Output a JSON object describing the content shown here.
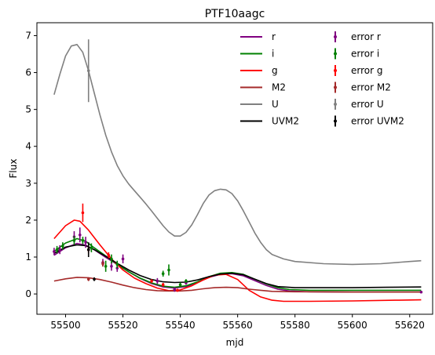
{
  "chart_data": {
    "type": "line",
    "title": "PTF10aagc",
    "xlabel": "mjd",
    "ylabel": "Flux",
    "xlim": [
      55490,
      55628
    ],
    "ylim": [
      -0.55,
      7.35
    ],
    "x_ticks": [
      55500,
      55520,
      55540,
      55560,
      55580,
      55600,
      55620
    ],
    "y_ticks": [
      0,
      1,
      2,
      3,
      4,
      5,
      6,
      7
    ],
    "grid": false,
    "legend": {
      "placement": "top-right",
      "columns": 2
    },
    "series": [
      {
        "name": "r",
        "color": "#800080",
        "curve": [
          [
            55496,
            1.05
          ],
          [
            55500,
            1.25
          ],
          [
            55504,
            1.37
          ],
          [
            55507,
            1.32
          ],
          [
            55510,
            1.2
          ],
          [
            55514,
            0.99
          ],
          [
            55518,
            0.8
          ],
          [
            55522,
            0.6
          ],
          [
            55526,
            0.42
          ],
          [
            55530,
            0.28
          ],
          [
            55534,
            0.19
          ],
          [
            55538,
            0.16
          ],
          [
            55542,
            0.2
          ],
          [
            55546,
            0.31
          ],
          [
            55550,
            0.45
          ],
          [
            55554,
            0.53
          ],
          [
            55558,
            0.55
          ],
          [
            55562,
            0.49
          ],
          [
            55566,
            0.36
          ],
          [
            55570,
            0.23
          ],
          [
            55574,
            0.13
          ],
          [
            55578,
            0.08
          ],
          [
            55585,
            0.06
          ],
          [
            55600,
            0.05
          ],
          [
            55615,
            0.05
          ],
          [
            55624,
            0.05
          ]
        ],
        "points": [
          [
            55496,
            1.15,
            0.1
          ],
          [
            55498,
            1.2,
            0.12
          ],
          [
            55503,
            1.55,
            0.15
          ],
          [
            55505,
            1.6,
            0.2
          ],
          [
            55507,
            1.4,
            0.15
          ],
          [
            55513,
            0.85,
            0.1
          ],
          [
            55516,
            0.75,
            0.12
          ],
          [
            55518,
            0.7,
            0.1
          ],
          [
            55520,
            0.95,
            0.12
          ],
          [
            55532,
            0.35,
            0.08
          ],
          [
            55538,
            0.12,
            0.06
          ],
          [
            55542,
            0.3,
            0.05
          ],
          [
            55624,
            0.05,
            0.03
          ]
        ]
      },
      {
        "name": "i",
        "color": "#008000",
        "curve": [
          [
            55496,
            1.15
          ],
          [
            55500,
            1.38
          ],
          [
            55504,
            1.5
          ],
          [
            55507,
            1.43
          ],
          [
            55510,
            1.25
          ],
          [
            55514,
            1.03
          ],
          [
            55518,
            0.8
          ],
          [
            55522,
            0.6
          ],
          [
            55526,
            0.43
          ],
          [
            55530,
            0.3
          ],
          [
            55534,
            0.21
          ],
          [
            55538,
            0.18
          ],
          [
            55542,
            0.22
          ],
          [
            55546,
            0.33
          ],
          [
            55550,
            0.47
          ],
          [
            55554,
            0.56
          ],
          [
            55558,
            0.58
          ],
          [
            55562,
            0.53
          ],
          [
            55566,
            0.4
          ],
          [
            55570,
            0.27
          ],
          [
            55574,
            0.17
          ],
          [
            55578,
            0.12
          ],
          [
            55585,
            0.1
          ],
          [
            55600,
            0.1
          ],
          [
            55615,
            0.1
          ],
          [
            55624,
            0.1
          ]
        ],
        "points": [
          [
            55497,
            1.2,
            0.1
          ],
          [
            55499,
            1.3,
            0.1
          ],
          [
            55503,
            1.45,
            0.12
          ],
          [
            55506,
            1.45,
            0.1
          ],
          [
            55509,
            1.25,
            0.12
          ],
          [
            55514,
            0.75,
            0.15
          ],
          [
            55516,
            0.95,
            0.12
          ],
          [
            55518,
            0.8,
            0.1
          ],
          [
            55534,
            0.55,
            0.08
          ],
          [
            55536,
            0.65,
            0.15
          ],
          [
            55540,
            0.25,
            0.06
          ],
          [
            55542,
            0.35,
            0.05
          ]
        ]
      },
      {
        "name": "g",
        "color": "#ff0000",
        "curve": [
          [
            55496,
            1.5
          ],
          [
            55500,
            1.85
          ],
          [
            55503,
            2.0
          ],
          [
            55505,
            1.97
          ],
          [
            55508,
            1.73
          ],
          [
            55512,
            1.33
          ],
          [
            55516,
            0.95
          ],
          [
            55520,
            0.65
          ],
          [
            55524,
            0.43
          ],
          [
            55528,
            0.28
          ],
          [
            55532,
            0.16
          ],
          [
            55536,
            0.09
          ],
          [
            55540,
            0.11
          ],
          [
            55544,
            0.22
          ],
          [
            55548,
            0.38
          ],
          [
            55552,
            0.51
          ],
          [
            55556,
            0.53
          ],
          [
            55560,
            0.39
          ],
          [
            55564,
            0.1
          ],
          [
            55568,
            -0.08
          ],
          [
            55572,
            -0.17
          ],
          [
            55576,
            -0.2
          ],
          [
            55585,
            -0.2
          ],
          [
            55600,
            -0.19
          ],
          [
            55615,
            -0.17
          ],
          [
            55624,
            -0.16
          ]
        ],
        "points": [
          [
            55506,
            2.2,
            0.25
          ],
          [
            55508,
            1.2,
            0.1
          ],
          [
            55515,
            1.05,
            0.08
          ],
          [
            55530,
            0.35,
            0.05
          ],
          [
            55534,
            0.25,
            0.05
          ],
          [
            55539,
            0.1,
            0.04
          ]
        ]
      },
      {
        "name": "M2",
        "color": "#a52a2a",
        "curve": [
          [
            55496,
            0.35
          ],
          [
            55500,
            0.41
          ],
          [
            55504,
            0.45
          ],
          [
            55508,
            0.44
          ],
          [
            55512,
            0.39
          ],
          [
            55516,
            0.32
          ],
          [
            55520,
            0.24
          ],
          [
            55524,
            0.17
          ],
          [
            55528,
            0.12
          ],
          [
            55532,
            0.09
          ],
          [
            55536,
            0.08
          ],
          [
            55540,
            0.08
          ],
          [
            55544,
            0.1
          ],
          [
            55548,
            0.14
          ],
          [
            55552,
            0.17
          ],
          [
            55556,
            0.18
          ],
          [
            55560,
            0.17
          ],
          [
            55564,
            0.13
          ],
          [
            55568,
            0.1
          ],
          [
            55572,
            0.07
          ],
          [
            55580,
            0.06
          ],
          [
            55600,
            0.05
          ],
          [
            55624,
            0.05
          ]
        ],
        "points": [
          [
            55508,
            0.4,
            0.05
          ],
          [
            55513,
            0.82,
            0.08
          ]
        ]
      },
      {
        "name": "U",
        "color": "#808080",
        "curve": [
          [
            55496,
            5.4
          ],
          [
            55498,
            5.95
          ],
          [
            55500,
            6.45
          ],
          [
            55502,
            6.72
          ],
          [
            55504,
            6.76
          ],
          [
            55506,
            6.55
          ],
          [
            55508,
            6.05
          ],
          [
            55510,
            5.45
          ],
          [
            55512,
            4.85
          ],
          [
            55514,
            4.3
          ],
          [
            55516,
            3.85
          ],
          [
            55518,
            3.48
          ],
          [
            55520,
            3.2
          ],
          [
            55522,
            2.98
          ],
          [
            55524,
            2.8
          ],
          [
            55526,
            2.62
          ],
          [
            55528,
            2.44
          ],
          [
            55530,
            2.25
          ],
          [
            55532,
            2.05
          ],
          [
            55534,
            1.85
          ],
          [
            55536,
            1.68
          ],
          [
            55538,
            1.57
          ],
          [
            55540,
            1.57
          ],
          [
            55542,
            1.67
          ],
          [
            55544,
            1.87
          ],
          [
            55546,
            2.15
          ],
          [
            55548,
            2.45
          ],
          [
            55550,
            2.68
          ],
          [
            55552,
            2.8
          ],
          [
            55554,
            2.84
          ],
          [
            55556,
            2.82
          ],
          [
            55558,
            2.72
          ],
          [
            55560,
            2.52
          ],
          [
            55562,
            2.25
          ],
          [
            55564,
            1.95
          ],
          [
            55566,
            1.65
          ],
          [
            55568,
            1.4
          ],
          [
            55570,
            1.2
          ],
          [
            55572,
            1.07
          ],
          [
            55576,
            0.95
          ],
          [
            55580,
            0.88
          ],
          [
            55590,
            0.82
          ],
          [
            55600,
            0.8
          ],
          [
            55610,
            0.82
          ],
          [
            55620,
            0.88
          ],
          [
            55624,
            0.9
          ]
        ],
        "points": [
          [
            55508,
            6.05,
            0.85
          ]
        ]
      },
      {
        "name": "UVM2",
        "color": "#000000",
        "curve": [
          [
            55496,
            1.1
          ],
          [
            55500,
            1.27
          ],
          [
            55504,
            1.33
          ],
          [
            55507,
            1.31
          ],
          [
            55510,
            1.2
          ],
          [
            55514,
            1.02
          ],
          [
            55518,
            0.83
          ],
          [
            55522,
            0.65
          ],
          [
            55526,
            0.5
          ],
          [
            55530,
            0.39
          ],
          [
            55534,
            0.33
          ],
          [
            55538,
            0.31
          ],
          [
            55542,
            0.32
          ],
          [
            55546,
            0.38
          ],
          [
            55550,
            0.47
          ],
          [
            55554,
            0.54
          ],
          [
            55558,
            0.56
          ],
          [
            55562,
            0.52
          ],
          [
            55566,
            0.4
          ],
          [
            55570,
            0.28
          ],
          [
            55574,
            0.2
          ],
          [
            55580,
            0.17
          ],
          [
            55590,
            0.17
          ],
          [
            55600,
            0.17
          ],
          [
            55612,
            0.18
          ],
          [
            55624,
            0.19
          ]
        ],
        "points": [
          [
            55508,
            1.2,
            0.2
          ],
          [
            55510,
            0.4,
            0.05
          ]
        ]
      }
    ],
    "legend_entries": [
      {
        "kind": "line",
        "label": "r",
        "color": "#800080"
      },
      {
        "kind": "line",
        "label": "i",
        "color": "#008000"
      },
      {
        "kind": "line",
        "label": "g",
        "color": "#ff0000"
      },
      {
        "kind": "line",
        "label": "M2",
        "color": "#a52a2a"
      },
      {
        "kind": "line",
        "label": "U",
        "color": "#808080"
      },
      {
        "kind": "line",
        "label": "UVM2",
        "color": "#000000"
      },
      {
        "kind": "error",
        "label": "error r",
        "color": "#800080"
      },
      {
        "kind": "error",
        "label": "error i",
        "color": "#008000"
      },
      {
        "kind": "error",
        "label": "error g",
        "color": "#ff0000"
      },
      {
        "kind": "error",
        "label": "error M2",
        "color": "#a52a2a"
      },
      {
        "kind": "error",
        "label": "error U",
        "color": "#808080"
      },
      {
        "kind": "error",
        "label": "error UVM2",
        "color": "#000000"
      }
    ]
  }
}
